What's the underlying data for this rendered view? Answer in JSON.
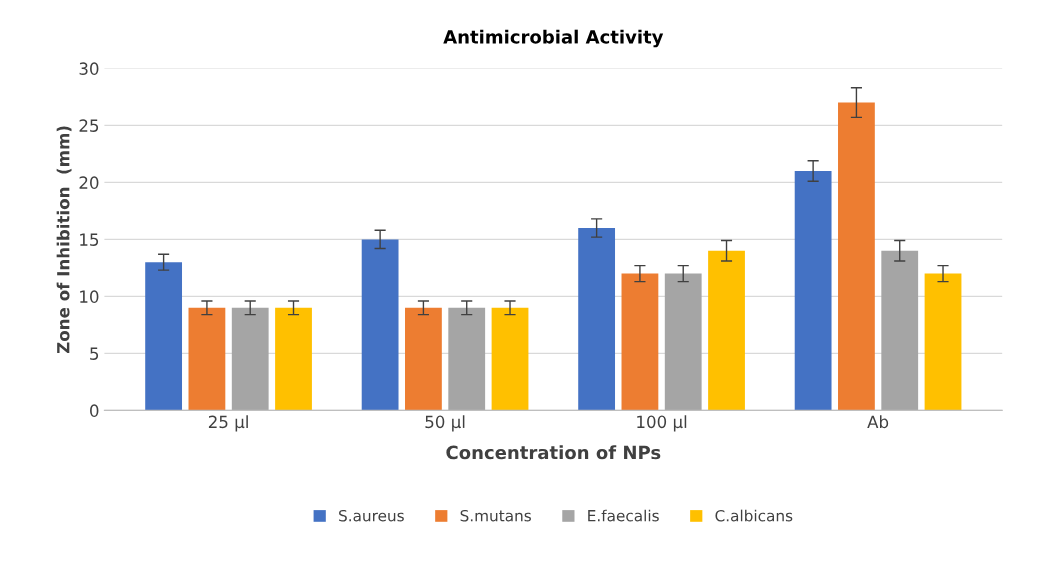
{
  "chart_data": {
    "type": "bar",
    "title": "Antimicrobial Activity",
    "xlabel": "Concentration of NPs",
    "ylabel": "Zone of Inhibition  (mm)",
    "categories": [
      "25 µl",
      "50 µl",
      "100 µl",
      "Ab"
    ],
    "series": [
      {
        "name": "S.aureus",
        "color": "#4472c4",
        "values": [
          13,
          15,
          16,
          21
        ],
        "errors": [
          0.7,
          0.8,
          0.8,
          0.9
        ]
      },
      {
        "name": "S.mutans",
        "color": "#ed7d31",
        "values": [
          9,
          9,
          12,
          27
        ],
        "errors": [
          0.6,
          0.6,
          0.7,
          1.3
        ]
      },
      {
        "name": "E.faecalis",
        "color": "#a5a5a5",
        "values": [
          9,
          9,
          12,
          14
        ],
        "errors": [
          0.6,
          0.6,
          0.7,
          0.9
        ]
      },
      {
        "name": "C.albicans",
        "color": "#ffc000",
        "values": [
          9,
          9,
          14,
          12
        ],
        "errors": [
          0.6,
          0.6,
          0.9,
          0.7
        ]
      }
    ],
    "ylim": [
      0,
      30
    ],
    "yticks": [
      0,
      5,
      10,
      15,
      20,
      25,
      30
    ],
    "grid": "y",
    "legend": "bottom"
  }
}
